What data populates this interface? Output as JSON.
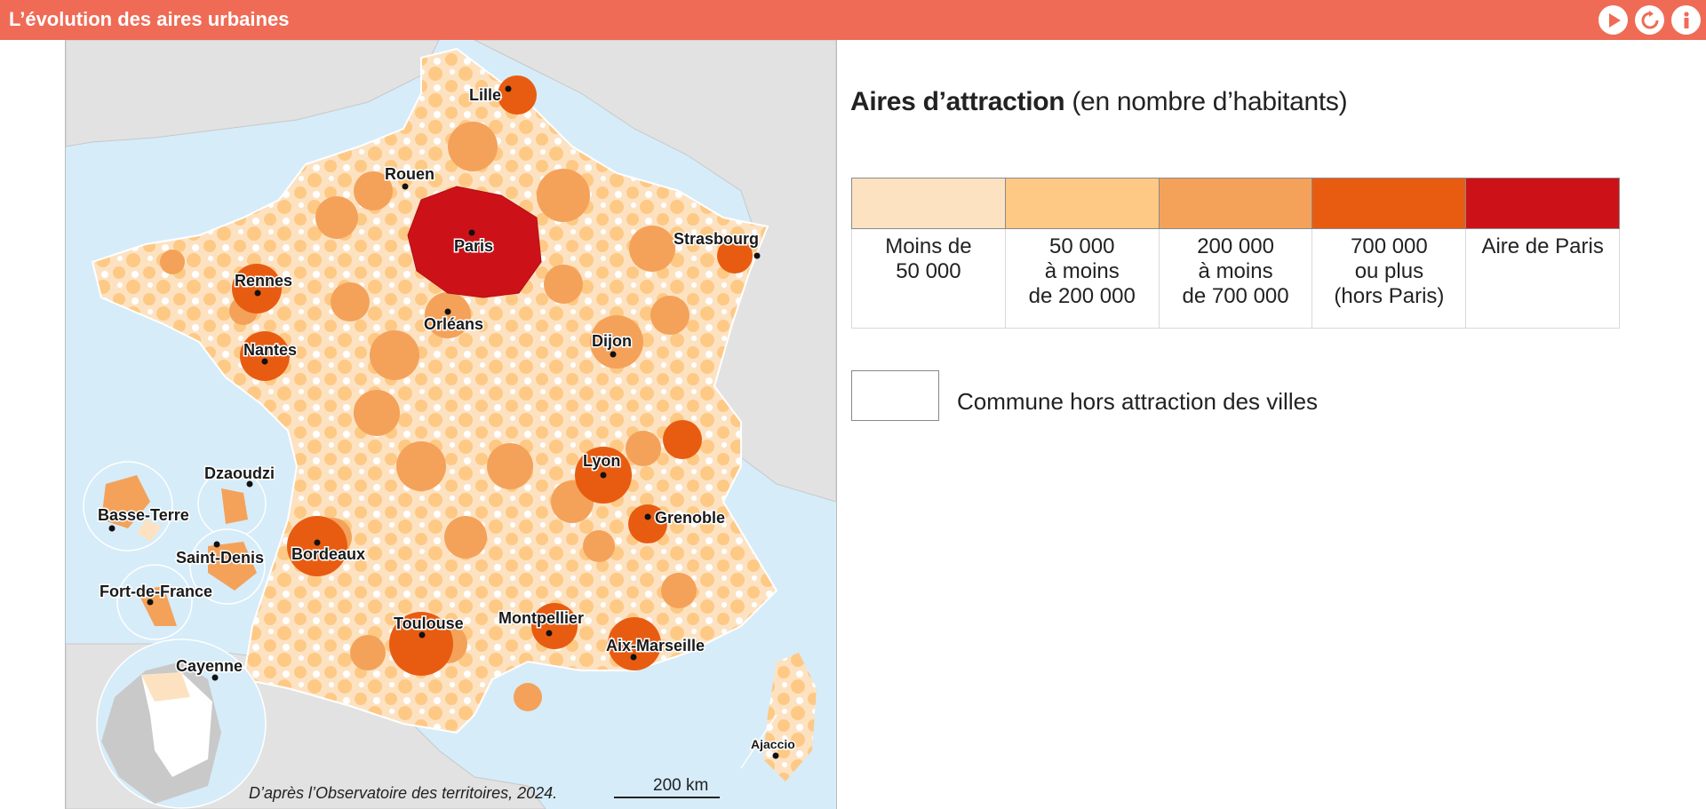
{
  "app": {
    "title": "L’évolution des aires urbaines"
  },
  "toolbar": {
    "buttons": [
      "play-icon",
      "reload-icon",
      "info-icon"
    ]
  },
  "colors": {
    "header": "#ef6b56",
    "sea": "#d6ecf9",
    "neighbour_land": "#e2e2e2",
    "class_1": "#fde2c2",
    "class_2": "#fdc985",
    "class_3": "#f4a25a",
    "class_4": "#e85c12",
    "paris": "#cc1218"
  },
  "legend": {
    "title_bold": "Aires d’attraction",
    "title_rest": " (en nombre d’habitants)",
    "classes": [
      {
        "lines": [
          "Moins de",
          "50 000"
        ],
        "color": "#fde2c2"
      },
      {
        "lines": [
          "50 000",
          "à moins",
          "de 200 000"
        ],
        "color": "#fdc985"
      },
      {
        "lines": [
          "200 000",
          "à moins",
          "de 700 000"
        ],
        "color": "#f4a25a"
      },
      {
        "lines": [
          "700 000",
          "ou plus",
          "(hors Paris)"
        ],
        "color": "#e85c12"
      },
      {
        "lines": [
          "Aire de Paris"
        ],
        "color": "#cc1218"
      }
    ],
    "hors_label": "Commune hors attraction des villes"
  },
  "map": {
    "cities": {
      "lille": "Lille",
      "rouen": "Rouen",
      "paris": "Paris",
      "strasbourg": "Strasbourg",
      "rennes": "Rennes",
      "orleans": "Orléans",
      "nantes": "Nantes",
      "dijon": "Dijon",
      "lyon": "Lyon",
      "grenoble": "Grenoble",
      "bordeaux": "Bordeaux",
      "toulouse": "Toulouse",
      "montpellier": "Montpellier",
      "aix_marseille": "Aix-Marseille",
      "ajaccio": "Ajaccio"
    },
    "overseas": {
      "dzaoudzi": "Dzaoudzi",
      "basse_terre": "Basse-Terre",
      "saint_denis": "Saint-Denis",
      "fort_de_france": "Fort-de-France",
      "cayenne": "Cayenne"
    },
    "source": "D’après l’Observatoire des territoires, 2024.",
    "scale": "200 km"
  }
}
